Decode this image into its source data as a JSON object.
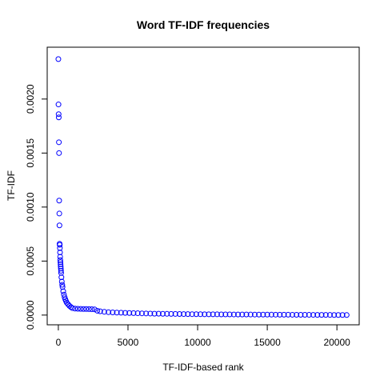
{
  "chart_data": {
    "type": "scatter",
    "title": "Word TF-IDF frequencies",
    "xlabel": "TF-IDF-based rank",
    "ylabel": "TF-IDF",
    "xlim": [
      -800,
      21600
    ],
    "ylim": [
      -9e-05,
      0.00248
    ],
    "x_ticks": [
      0,
      5000,
      10000,
      15000,
      20000
    ],
    "x_tick_labels": [
      "0",
      "5000",
      "10000",
      "15000",
      "20000"
    ],
    "y_ticks": [
      0.0,
      0.0005,
      0.001,
      0.0015,
      0.002
    ],
    "y_tick_labels": [
      "0.0000",
      "0.0005",
      "0.0010",
      "0.0015",
      "0.0020"
    ],
    "grid": false,
    "legend": "none",
    "marker": "open-circle",
    "color": "#0000ff",
    "series": [
      {
        "x": [
          1,
          10,
          20,
          30,
          40,
          50,
          60,
          70,
          80,
          90,
          100,
          110,
          120,
          130,
          140,
          150,
          160,
          170,
          180,
          190,
          200,
          220,
          250,
          280,
          300,
          350,
          400,
          450,
          500,
          550,
          600,
          700,
          800,
          900,
          1000,
          1200,
          1400,
          1600,
          1800,
          2000,
          2200,
          2400,
          2600,
          2800,
          3000,
          3300,
          3600,
          3900,
          4200,
          4500,
          4800,
          5100,
          5400,
          5700,
          6000,
          6300,
          6600,
          6900,
          7200,
          7500,
          7800,
          8100,
          8400,
          8700,
          9000,
          9300,
          9600,
          9900,
          10200,
          10500,
          10800,
          11100,
          11400,
          11700,
          12000,
          12300,
          12600,
          12900,
          13200,
          13500,
          13800,
          14100,
          14400,
          14700,
          15000,
          15300,
          15600,
          15900,
          16200,
          16500,
          16800,
          17100,
          17400,
          17700,
          18000,
          18300,
          18600,
          18900,
          19200,
          19500,
          19800,
          20100,
          20400,
          20700
        ],
        "y": [
          0.00237,
          0.00195,
          0.00186,
          0.00183,
          0.0016,
          0.0015,
          0.00106,
          0.00094,
          0.00083,
          0.00066,
          0.00065,
          0.00062,
          0.00058,
          0.00054,
          0.00051,
          0.00049,
          0.00047,
          0.00045,
          0.00043,
          0.00041,
          0.00039,
          0.00035,
          0.00031,
          0.00028,
          0.00026,
          0.00022,
          0.00019,
          0.000165,
          0.000145,
          0.00013,
          0.000115,
          0.0001,
          8.5e-05,
          7.5e-05,
          6.5e-05,
          6e-05,
          5.8e-05,
          5.7e-05,
          5.6e-05,
          5.6e-05,
          5.5e-05,
          5.4e-05,
          5.3e-05,
          4e-05,
          3.5e-05,
          3e-05,
          2.7e-05,
          2.5e-05,
          2.3e-05,
          2.2e-05,
          2e-05,
          1.9e-05,
          1.8e-05,
          1.7e-05,
          1.6e-05,
          1.5e-05,
          1.4e-05,
          1.3e-05,
          1.25e-05,
          1.2e-05,
          1.15e-05,
          1.1e-05,
          1.05e-05,
          1e-05,
          9.5e-06,
          9e-06,
          8.5e-06,
          8e-06,
          7.8e-06,
          7.5e-06,
          7.2e-06,
          7e-06,
          6.8e-06,
          6.5e-06,
          6.3e-06,
          6e-06,
          5.8e-06,
          5.6e-06,
          5.4e-06,
          5.2e-06,
          5e-06,
          4.8e-06,
          4.6e-06,
          4.4e-06,
          4.2e-06,
          4e-06,
          3.8e-06,
          3.6e-06,
          3.4e-06,
          3.2e-06,
          3e-06,
          2.8e-06,
          2.6e-06,
          2.4e-06,
          2.2e-06,
          2e-06,
          1.8e-06,
          1.6e-06,
          1.4e-06,
          1.2e-06,
          1e-06,
          8e-07,
          6e-07,
          4e-07
        ]
      }
    ]
  }
}
